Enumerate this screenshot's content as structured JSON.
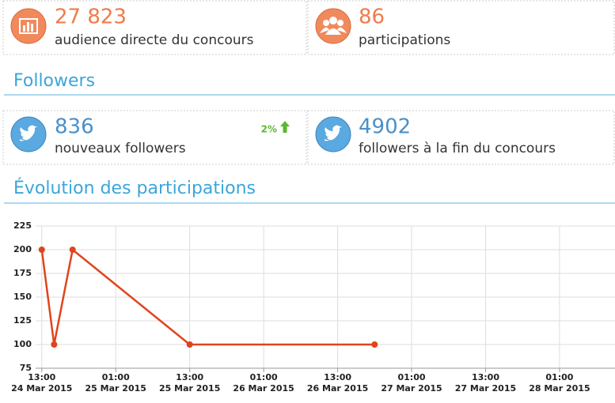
{
  "stats": [
    {
      "value": "27 823",
      "label": "audience directe du concours"
    },
    {
      "value": "86",
      "label": "participations"
    }
  ],
  "followers": {
    "title": "Followers",
    "stats": [
      {
        "value": "836",
        "label": "nouveaux followers",
        "change": "2%"
      },
      {
        "value": "4902",
        "label": "followers à la fin du concours"
      }
    ]
  },
  "evolution_title": "Évolution des participations",
  "chart_data": {
    "type": "line",
    "x": [
      "2015-03-24 13:00",
      "2015-03-24 15:00",
      "2015-03-24 18:00",
      "2015-03-25 13:00",
      "2015-03-26 19:00"
    ],
    "series": [
      {
        "name": "participations",
        "color": "#e0441c",
        "values": [
          200,
          100,
          200,
          100,
          100
        ]
      }
    ],
    "xlim": [
      "2015-03-24 12:00",
      "2015-03-28 10:00"
    ],
    "xticks": [
      {
        "value": "2015-03-24 13:00",
        "label": [
          "13:00",
          "24 Mar 2015"
        ]
      },
      {
        "value": "2015-03-25 01:00",
        "label": [
          "01:00",
          "25 Mar 2015"
        ]
      },
      {
        "value": "2015-03-25 13:00",
        "label": [
          "13:00",
          "25 Mar 2015"
        ]
      },
      {
        "value": "2015-03-26 01:00",
        "label": [
          "01:00",
          "26 Mar 2015"
        ]
      },
      {
        "value": "2015-03-26 13:00",
        "label": [
          "13:00",
          "26 Mar 2015"
        ]
      },
      {
        "value": "2015-03-27 01:00",
        "label": [
          "01:00",
          "27 Mar 2015"
        ]
      },
      {
        "value": "2015-03-27 13:00",
        "label": [
          "13:00",
          "27 Mar 2015"
        ]
      },
      {
        "value": "2015-03-28 01:00",
        "label": [
          "01:00",
          "28 Mar 2015"
        ]
      }
    ],
    "ylim": [
      75,
      225
    ],
    "yticks": [
      75,
      100,
      125,
      150,
      175,
      200,
      225
    ],
    "grid": true
  }
}
